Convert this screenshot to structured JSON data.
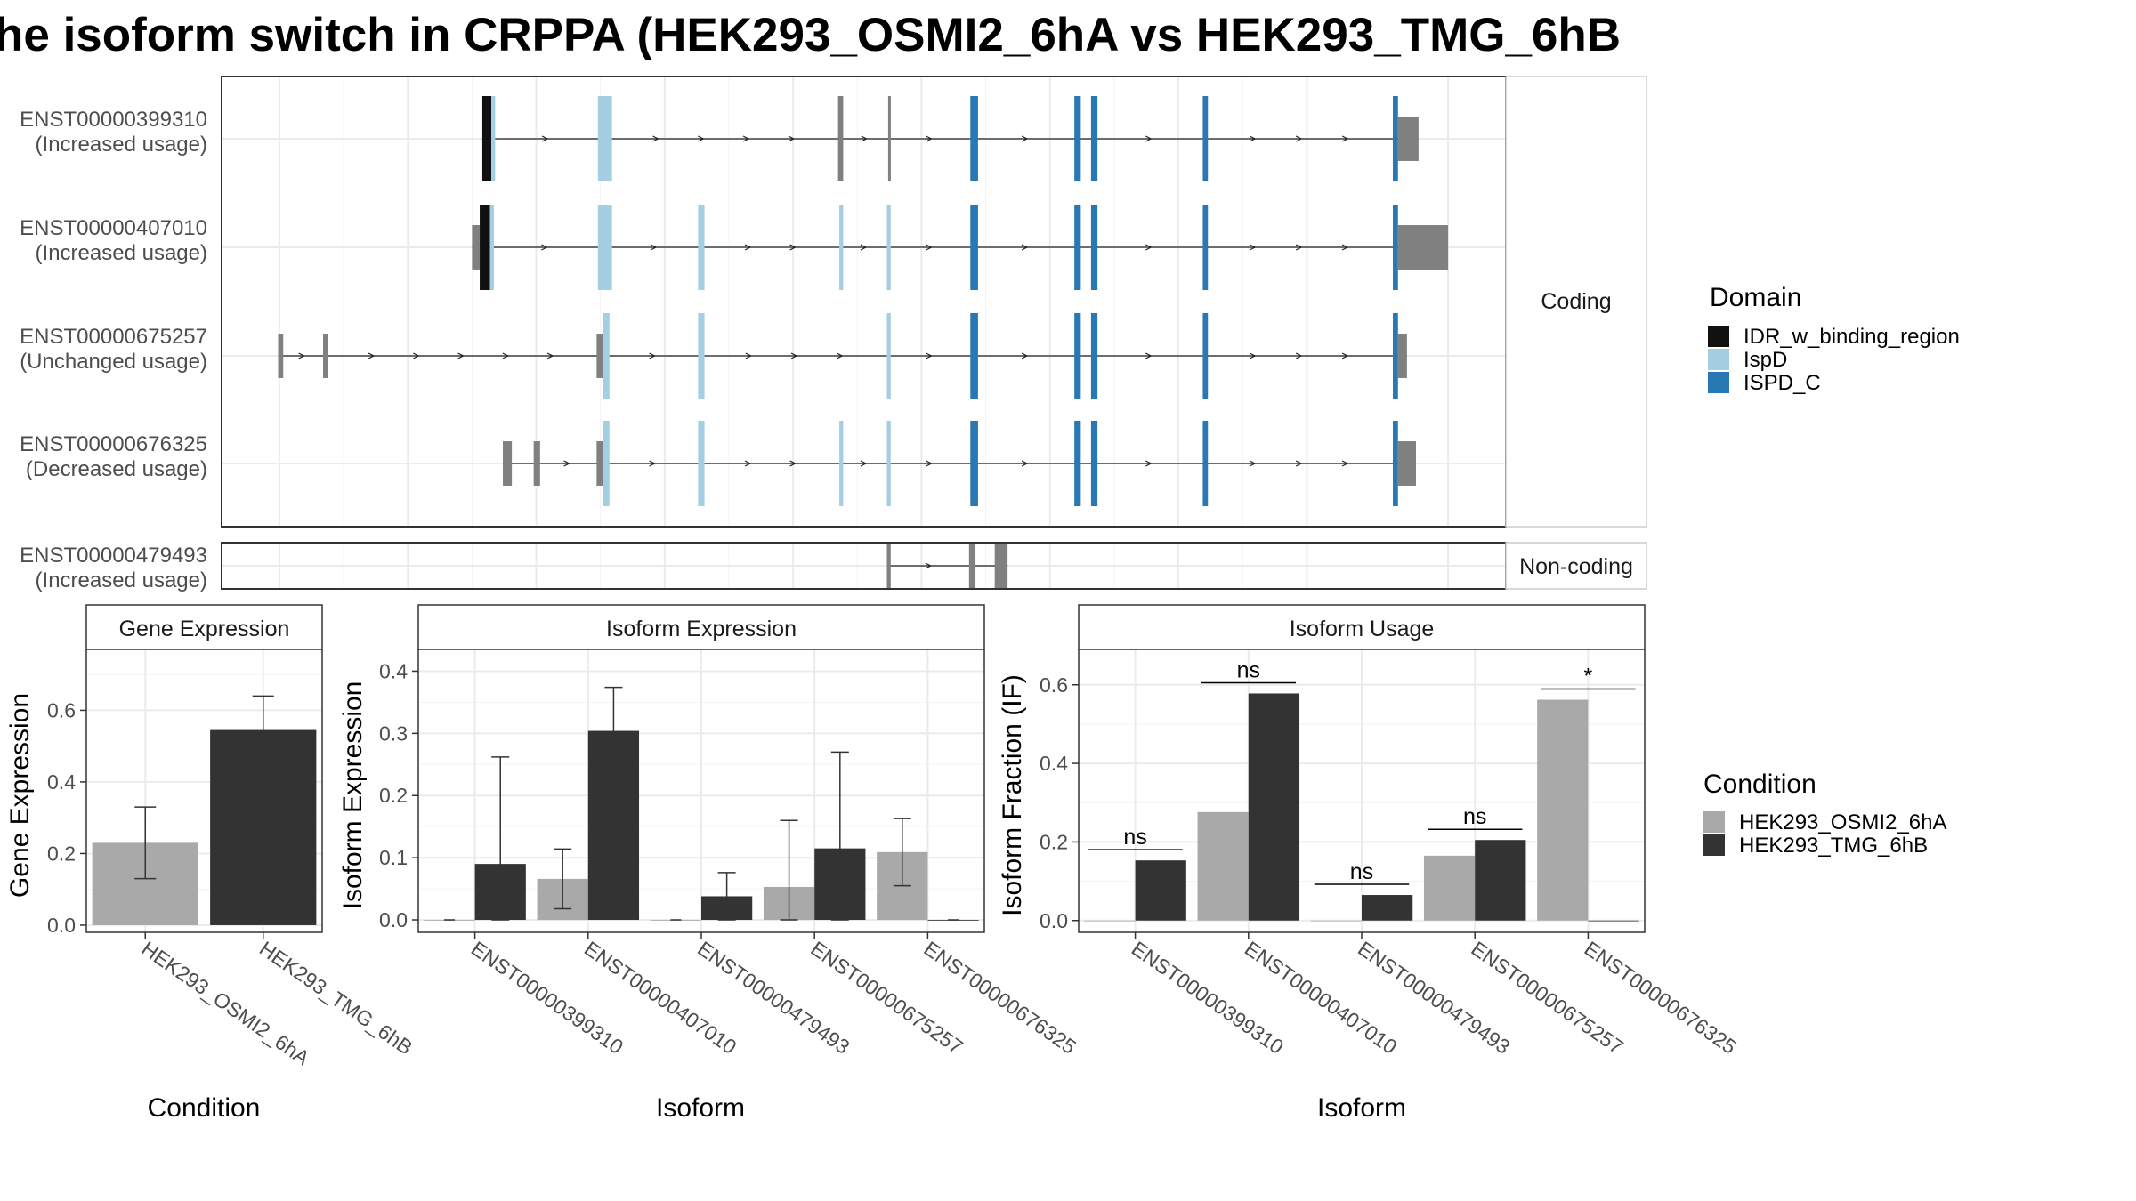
{
  "title": "he isoform switch in CRPPA (HEK293_OSMI2_6hA vs HEK293_TMG_6hB",
  "colors": {
    "idr": "#111111",
    "ispd": "#a6cee3",
    "ispd_c": "#2878b5",
    "exon_grey": "#808080",
    "cond_a": "#a9a9a9",
    "cond_b": "#333333",
    "grid": "#ebebeb",
    "panel_border": "#333333"
  },
  "structure": {
    "strip_coding": "Coding",
    "strip_noncoding": "Non-coding",
    "transcripts": [
      {
        "id": "ENST00000399310",
        "status": "(Increased usage)",
        "group": "coding",
        "exons": [
          {
            "s": 0.203,
            "e": 0.21,
            "domain": "idr",
            "size": "big"
          },
          {
            "s": 0.21,
            "e": 0.213,
            "domain": "ispd",
            "size": "big"
          },
          {
            "s": 0.293,
            "e": 0.304,
            "domain": "ispd",
            "size": "big"
          },
          {
            "s": 0.48,
            "e": 0.484,
            "domain": "grey",
            "size": "big"
          },
          {
            "s": 0.519,
            "e": 0.521,
            "domain": "grey",
            "size": "big"
          },
          {
            "s": 0.583,
            "e": 0.589,
            "domain": "ispd_c",
            "size": "big"
          },
          {
            "s": 0.664,
            "e": 0.669,
            "domain": "ispd_c",
            "size": "big"
          },
          {
            "s": 0.677,
            "e": 0.682,
            "domain": "ispd_c",
            "size": "big"
          },
          {
            "s": 0.764,
            "e": 0.768,
            "domain": "ispd_c",
            "size": "big"
          },
          {
            "s": 0.912,
            "e": 0.916,
            "domain": "ispd_c",
            "size": "big"
          },
          {
            "s": 0.916,
            "e": 0.932,
            "domain": "grey",
            "size": "small"
          }
        ]
      },
      {
        "id": "ENST00000407010",
        "status": "(Increased usage)",
        "group": "coding",
        "exons": [
          {
            "s": 0.195,
            "e": 0.201,
            "domain": "grey",
            "size": "small"
          },
          {
            "s": 0.201,
            "e": 0.209,
            "domain": "idr",
            "size": "big"
          },
          {
            "s": 0.209,
            "e": 0.212,
            "domain": "ispd",
            "size": "big"
          },
          {
            "s": 0.293,
            "e": 0.304,
            "domain": "ispd",
            "size": "big"
          },
          {
            "s": 0.371,
            "e": 0.376,
            "domain": "ispd",
            "size": "big"
          },
          {
            "s": 0.481,
            "e": 0.484,
            "domain": "ispd",
            "size": "big"
          },
          {
            "s": 0.518,
            "e": 0.521,
            "domain": "ispd",
            "size": "big"
          },
          {
            "s": 0.583,
            "e": 0.589,
            "domain": "ispd_c",
            "size": "big"
          },
          {
            "s": 0.664,
            "e": 0.669,
            "domain": "ispd_c",
            "size": "big"
          },
          {
            "s": 0.677,
            "e": 0.682,
            "domain": "ispd_c",
            "size": "big"
          },
          {
            "s": 0.764,
            "e": 0.768,
            "domain": "ispd_c",
            "size": "big"
          },
          {
            "s": 0.912,
            "e": 0.916,
            "domain": "ispd_c",
            "size": "big"
          },
          {
            "s": 0.916,
            "e": 0.955,
            "domain": "grey",
            "size": "small"
          }
        ]
      },
      {
        "id": "ENST00000675257",
        "status": "(Unchanged usage)",
        "group": "coding",
        "exons": [
          {
            "s": 0.044,
            "e": 0.048,
            "domain": "grey",
            "size": "small"
          },
          {
            "s": 0.079,
            "e": 0.083,
            "domain": "grey",
            "size": "small"
          },
          {
            "s": 0.292,
            "e": 0.297,
            "domain": "grey",
            "size": "small"
          },
          {
            "s": 0.297,
            "e": 0.302,
            "domain": "ispd",
            "size": "big"
          },
          {
            "s": 0.371,
            "e": 0.376,
            "domain": "ispd",
            "size": "big"
          },
          {
            "s": 0.518,
            "e": 0.521,
            "domain": "ispd",
            "size": "big"
          },
          {
            "s": 0.583,
            "e": 0.589,
            "domain": "ispd_c",
            "size": "big"
          },
          {
            "s": 0.664,
            "e": 0.669,
            "domain": "ispd_c",
            "size": "big"
          },
          {
            "s": 0.677,
            "e": 0.682,
            "domain": "ispd_c",
            "size": "big"
          },
          {
            "s": 0.764,
            "e": 0.768,
            "domain": "ispd_c",
            "size": "big"
          },
          {
            "s": 0.912,
            "e": 0.916,
            "domain": "ispd_c",
            "size": "big"
          },
          {
            "s": 0.916,
            "e": 0.923,
            "domain": "grey",
            "size": "small"
          }
        ]
      },
      {
        "id": "ENST00000676325",
        "status": "(Decreased usage)",
        "group": "coding",
        "exons": [
          {
            "s": 0.219,
            "e": 0.226,
            "domain": "grey",
            "size": "small"
          },
          {
            "s": 0.243,
            "e": 0.248,
            "domain": "grey",
            "size": "small"
          },
          {
            "s": 0.292,
            "e": 0.297,
            "domain": "grey",
            "size": "small"
          },
          {
            "s": 0.297,
            "e": 0.302,
            "domain": "ispd",
            "size": "big"
          },
          {
            "s": 0.371,
            "e": 0.376,
            "domain": "ispd",
            "size": "big"
          },
          {
            "s": 0.481,
            "e": 0.484,
            "domain": "ispd",
            "size": "big"
          },
          {
            "s": 0.518,
            "e": 0.521,
            "domain": "ispd",
            "size": "big"
          },
          {
            "s": 0.583,
            "e": 0.589,
            "domain": "ispd_c",
            "size": "big"
          },
          {
            "s": 0.664,
            "e": 0.669,
            "domain": "ispd_c",
            "size": "big"
          },
          {
            "s": 0.677,
            "e": 0.682,
            "domain": "ispd_c",
            "size": "big"
          },
          {
            "s": 0.764,
            "e": 0.768,
            "domain": "ispd_c",
            "size": "big"
          },
          {
            "s": 0.912,
            "e": 0.916,
            "domain": "ispd_c",
            "size": "big"
          },
          {
            "s": 0.916,
            "e": 0.93,
            "domain": "grey",
            "size": "small"
          }
        ]
      },
      {
        "id": "ENST00000479493",
        "status": "(Increased usage)",
        "group": "noncoding",
        "exons": [
          {
            "s": 0.518,
            "e": 0.521,
            "domain": "grey",
            "size": "big"
          },
          {
            "s": 0.582,
            "e": 0.587,
            "domain": "grey",
            "size": "big"
          },
          {
            "s": 0.602,
            "e": 0.612,
            "domain": "grey",
            "size": "big"
          }
        ]
      }
    ]
  },
  "legend_domain": {
    "title": "Domain",
    "items": [
      {
        "label": "IDR_w_binding_region",
        "color_key": "idr"
      },
      {
        "label": "IspD",
        "color_key": "ispd"
      },
      {
        "label": "ISPD_C",
        "color_key": "ispd_c"
      }
    ]
  },
  "legend_condition": {
    "title": "Condition",
    "items": [
      {
        "label": "HEK293_OSMI2_6hA",
        "color_key": "cond_a"
      },
      {
        "label": "HEK293_TMG_6hB",
        "color_key": "cond_b"
      }
    ]
  },
  "chart_data": [
    {
      "type": "bar",
      "title": "Gene Expression",
      "xlabel": "Condition",
      "ylabel": "Gene Expression",
      "ylim": [
        -0.02,
        0.77
      ],
      "yticks": [
        "0.0",
        "0.2",
        "0.4",
        "0.6"
      ],
      "categories": [
        "HEK293_OSMI2_6hA",
        "HEK293_TMG_6hB"
      ],
      "values": [
        0.23,
        0.545
      ],
      "error_low": [
        0.13,
        0.45
      ],
      "error_high": [
        0.33,
        0.64
      ]
    },
    {
      "type": "bar",
      "title": "Isoform Expression",
      "xlabel": "Isoform",
      "ylabel": "Isoform Expression",
      "ylim": [
        -0.02,
        0.435
      ],
      "yticks": [
        "0.0",
        "0.1",
        "0.2",
        "0.3",
        "0.4"
      ],
      "categories": [
        "ENST00000399310",
        "ENST00000407010",
        "ENST00000479493",
        "ENST00000675257",
        "ENST00000676325"
      ],
      "series": [
        {
          "name": "HEK293_OSMI2_6hA",
          "values": [
            0.0,
            0.066,
            0.0,
            0.053,
            0.109
          ],
          "error_low": [
            0.0,
            0.018,
            0.0,
            0.0,
            0.055
          ],
          "error_high": [
            0.0,
            0.114,
            0.0,
            0.16,
            0.163
          ]
        },
        {
          "name": "HEK293_TMG_6hB",
          "values": [
            0.09,
            0.304,
            0.038,
            0.115,
            0.0
          ],
          "error_low": [
            0.0,
            0.234,
            0.0,
            0.0,
            0.0
          ],
          "error_high": [
            0.262,
            0.374,
            0.076,
            0.27,
            0.0
          ]
        }
      ]
    },
    {
      "type": "bar",
      "title": "Isoform Usage",
      "xlabel": "Isoform",
      "ylabel": "Isoform Fraction (IF)",
      "ylim": [
        -0.03,
        0.69
      ],
      "yticks": [
        "0.0",
        "0.2",
        "0.4",
        "0.6"
      ],
      "categories": [
        "ENST00000399310",
        "ENST00000407010",
        "ENST00000479493",
        "ENST00000675257",
        "ENST00000676325"
      ],
      "series": [
        {
          "name": "HEK293_OSMI2_6hA",
          "values": [
            0.0,
            0.276,
            0.0,
            0.165,
            0.562
          ]
        },
        {
          "name": "HEK293_TMG_6hB",
          "values": [
            0.153,
            0.578,
            0.065,
            0.205,
            0.0
          ]
        }
      ],
      "significance": [
        "ns",
        "ns",
        "ns",
        "ns",
        "*"
      ]
    }
  ]
}
